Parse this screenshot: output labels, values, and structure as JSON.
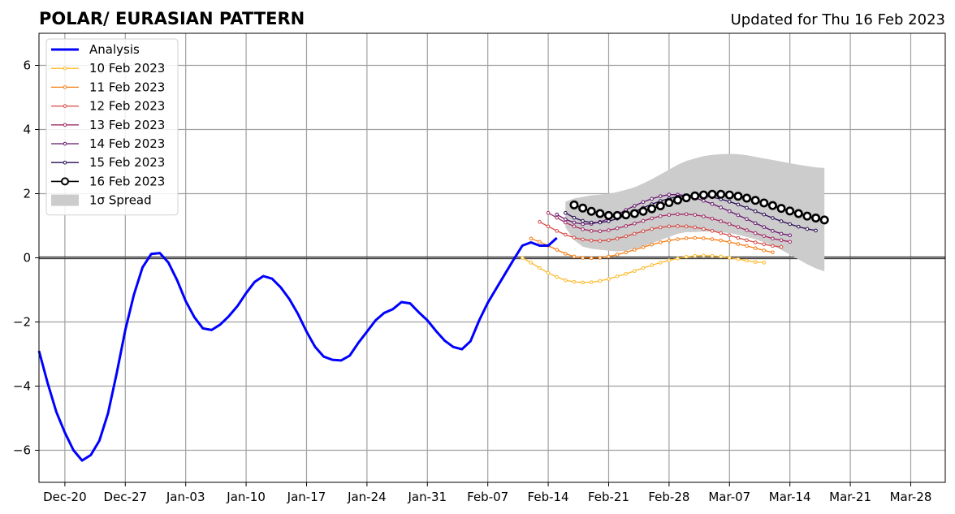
{
  "header": {
    "title": "POLAR/ EURASIAN  PATTERN",
    "updated": "Updated for Thu 16 Feb 2023"
  },
  "chart_data": {
    "type": "line",
    "title": "POLAR/ EURASIAN  PATTERN",
    "subtitle": "Updated for Thu 16 Feb 2023",
    "xlabel": "",
    "ylabel": "",
    "x_unit": "days",
    "xlim": [
      "2022-12-17",
      "2023-04-01"
    ],
    "ylim": [
      -7,
      7
    ],
    "grid": true,
    "legend_position": "top-left",
    "x_ticks": [
      {
        "date": "2022-12-20",
        "label": "Dec-20"
      },
      {
        "date": "2022-12-27",
        "label": "Dec-27"
      },
      {
        "date": "2023-01-03",
        "label": "Jan-03"
      },
      {
        "date": "2023-01-10",
        "label": "Jan-10"
      },
      {
        "date": "2023-01-17",
        "label": "Jan-17"
      },
      {
        "date": "2023-01-24",
        "label": "Jan-24"
      },
      {
        "date": "2023-01-31",
        "label": "Jan-31"
      },
      {
        "date": "2023-02-07",
        "label": "Feb-07"
      },
      {
        "date": "2023-02-14",
        "label": "Feb-14"
      },
      {
        "date": "2023-02-21",
        "label": "Feb-21"
      },
      {
        "date": "2023-02-28",
        "label": "Feb-28"
      },
      {
        "date": "2023-03-07",
        "label": "Mar-07"
      },
      {
        "date": "2023-03-14",
        "label": "Mar-14"
      },
      {
        "date": "2023-03-21",
        "label": "Mar-21"
      },
      {
        "date": "2023-03-28",
        "label": "Mar-28"
      }
    ],
    "y_ticks": [
      {
        "value": 6,
        "label": "6"
      },
      {
        "value": 4,
        "label": "4"
      },
      {
        "value": 2,
        "label": "2"
      },
      {
        "value": 0,
        "label": "0"
      },
      {
        "value": -2,
        "label": "−2"
      },
      {
        "value": -4,
        "label": "−4"
      },
      {
        "value": -6,
        "label": "−6"
      }
    ],
    "analysis": {
      "name": "Analysis",
      "color": "#0000ff",
      "points": [
        [
          "2022-12-17",
          -2.9
        ],
        [
          "2022-12-18",
          -3.9
        ],
        [
          "2022-12-19",
          -4.8
        ],
        [
          "2022-12-20",
          -5.45
        ],
        [
          "2022-12-21",
          -6.0
        ],
        [
          "2022-12-22",
          -6.32
        ],
        [
          "2022-12-23",
          -6.15
        ],
        [
          "2022-12-24",
          -5.7
        ],
        [
          "2022-12-25",
          -4.85
        ],
        [
          "2022-12-26",
          -3.6
        ],
        [
          "2022-12-27",
          -2.25
        ],
        [
          "2022-12-28",
          -1.15
        ],
        [
          "2022-12-29",
          -0.3
        ],
        [
          "2022-12-30",
          0.12
        ],
        [
          "2022-12-31",
          0.15
        ],
        [
          "2023-01-01",
          -0.15
        ],
        [
          "2023-01-02",
          -0.7
        ],
        [
          "2023-01-03",
          -1.35
        ],
        [
          "2023-01-04",
          -1.85
        ],
        [
          "2023-01-05",
          -2.2
        ],
        [
          "2023-01-06",
          -2.25
        ],
        [
          "2023-01-07",
          -2.08
        ],
        [
          "2023-01-08",
          -1.82
        ],
        [
          "2023-01-09",
          -1.5
        ],
        [
          "2023-01-10",
          -1.1
        ],
        [
          "2023-01-11",
          -0.75
        ],
        [
          "2023-01-12",
          -0.57
        ],
        [
          "2023-01-13",
          -0.65
        ],
        [
          "2023-01-14",
          -0.92
        ],
        [
          "2023-01-15",
          -1.28
        ],
        [
          "2023-01-16",
          -1.75
        ],
        [
          "2023-01-17",
          -2.3
        ],
        [
          "2023-01-18",
          -2.78
        ],
        [
          "2023-01-19",
          -3.08
        ],
        [
          "2023-01-20",
          -3.18
        ],
        [
          "2023-01-21",
          -3.2
        ],
        [
          "2023-01-22",
          -3.05
        ],
        [
          "2023-01-23",
          -2.65
        ],
        [
          "2023-01-24",
          -2.3
        ],
        [
          "2023-01-25",
          -1.95
        ],
        [
          "2023-01-26",
          -1.72
        ],
        [
          "2023-01-27",
          -1.6
        ],
        [
          "2023-01-28",
          -1.38
        ],
        [
          "2023-01-29",
          -1.42
        ],
        [
          "2023-01-30",
          -1.7
        ],
        [
          "2023-01-31",
          -1.95
        ],
        [
          "2023-02-01",
          -2.28
        ],
        [
          "2023-02-02",
          -2.58
        ],
        [
          "2023-02-03",
          -2.78
        ],
        [
          "2023-02-04",
          -2.85
        ],
        [
          "2023-02-05",
          -2.6
        ],
        [
          "2023-02-06",
          -1.95
        ],
        [
          "2023-02-07",
          -1.4
        ],
        [
          "2023-02-08",
          -0.95
        ],
        [
          "2023-02-09",
          -0.5
        ],
        [
          "2023-02-10",
          -0.05
        ],
        [
          "2023-02-11",
          0.38
        ],
        [
          "2023-02-12",
          0.48
        ],
        [
          "2023-02-13",
          0.38
        ],
        [
          "2023-02-14",
          0.38
        ],
        [
          "2023-02-15",
          0.62
        ]
      ]
    },
    "spread": {
      "name": "1σ Spread",
      "color": "#cccccc",
      "x": [
        "2023-02-16",
        "2023-02-17",
        "2023-02-18",
        "2023-02-19",
        "2023-02-20",
        "2023-02-21",
        "2023-02-22",
        "2023-02-23",
        "2023-02-24",
        "2023-02-25",
        "2023-02-26",
        "2023-02-27",
        "2023-02-28",
        "2023-03-01",
        "2023-03-02",
        "2023-03-03",
        "2023-03-04",
        "2023-03-05",
        "2023-03-06",
        "2023-03-07",
        "2023-03-08",
        "2023-03-09",
        "2023-03-10",
        "2023-03-11",
        "2023-03-12",
        "2023-03-13",
        "2023-03-14",
        "2023-03-15",
        "2023-03-16",
        "2023-03-17",
        "2023-03-18"
      ],
      "upper": [
        1.75,
        1.85,
        1.9,
        1.95,
        1.97,
        2.0,
        2.05,
        2.12,
        2.2,
        2.32,
        2.45,
        2.6,
        2.75,
        2.9,
        3.02,
        3.1,
        3.17,
        3.21,
        3.23,
        3.24,
        3.23,
        3.2,
        3.15,
        3.1,
        3.05,
        3.0,
        2.95,
        2.9,
        2.86,
        2.82,
        2.8
      ],
      "lower": [
        0.95,
        0.55,
        0.35,
        0.28,
        0.25,
        0.22,
        0.2,
        0.22,
        0.28,
        0.35,
        0.45,
        0.55,
        0.65,
        0.75,
        0.8,
        0.8,
        0.82,
        0.82,
        0.8,
        0.77,
        0.72,
        0.65,
        0.58,
        0.48,
        0.38,
        0.25,
        0.1,
        -0.05,
        -0.2,
        -0.33,
        -0.42
      ]
    },
    "series": [
      {
        "name": "10 Feb 2023",
        "color": "#fcb929",
        "start": "2023-02-11",
        "values": [
          0.0,
          -0.15,
          -0.32,
          -0.47,
          -0.6,
          -0.7,
          -0.75,
          -0.77,
          -0.76,
          -0.72,
          -0.66,
          -0.58,
          -0.5,
          -0.41,
          -0.32,
          -0.23,
          -0.15,
          -0.08,
          -0.02,
          0.03,
          0.06,
          0.07,
          0.06,
          0.04,
          0.0,
          -0.04,
          -0.09,
          -0.13,
          -0.15
        ]
      },
      {
        "name": "11 Feb 2023",
        "color": "#f57d15",
        "start": "2023-02-12",
        "values": [
          0.6,
          0.5,
          0.38,
          0.25,
          0.13,
          0.04,
          0.0,
          -0.01,
          0.0,
          0.04,
          0.1,
          0.17,
          0.25,
          0.33,
          0.41,
          0.48,
          0.54,
          0.58,
          0.61,
          0.62,
          0.61,
          0.58,
          0.54,
          0.49,
          0.43,
          0.37,
          0.3,
          0.23,
          0.17
        ]
      },
      {
        "name": "12 Feb 2023",
        "color": "#d44842",
        "start": "2023-02-13",
        "values": [
          1.12,
          0.98,
          0.84,
          0.72,
          0.63,
          0.57,
          0.54,
          0.53,
          0.55,
          0.6,
          0.67,
          0.75,
          0.83,
          0.9,
          0.95,
          0.98,
          0.99,
          0.98,
          0.95,
          0.9,
          0.84,
          0.77,
          0.7,
          0.62,
          0.55,
          0.48,
          0.42,
          0.37,
          0.34
        ]
      },
      {
        "name": "13 Feb 2023",
        "color": "#9f2a63",
        "start": "2023-02-14",
        "values": [
          1.4,
          1.25,
          1.1,
          0.98,
          0.89,
          0.84,
          0.83,
          0.86,
          0.92,
          0.99,
          1.07,
          1.15,
          1.23,
          1.3,
          1.34,
          1.36,
          1.36,
          1.34,
          1.29,
          1.22,
          1.14,
          1.05,
          0.96,
          0.86,
          0.77,
          0.68,
          0.6,
          0.55,
          0.5
        ]
      },
      {
        "name": "14 Feb 2023",
        "color": "#65156e",
        "start": "2023-02-15",
        "values": [
          1.35,
          1.2,
          1.1,
          1.05,
          1.06,
          1.12,
          1.22,
          1.35,
          1.49,
          1.62,
          1.74,
          1.84,
          1.92,
          1.97,
          1.97,
          1.94,
          1.87,
          1.78,
          1.68,
          1.57,
          1.45,
          1.33,
          1.21,
          1.08,
          0.96,
          0.84,
          0.75,
          0.7
        ]
      },
      {
        "name": "15 Feb 2023",
        "color": "#280b53",
        "start": "2023-02-16",
        "values": [
          1.4,
          1.25,
          1.15,
          1.1,
          1.1,
          1.14,
          1.22,
          1.32,
          1.44,
          1.56,
          1.67,
          1.77,
          1.85,
          1.91,
          1.94,
          1.95,
          1.93,
          1.89,
          1.83,
          1.75,
          1.66,
          1.56,
          1.45,
          1.35,
          1.24,
          1.14,
          1.05,
          0.97,
          0.9,
          0.85
        ]
      },
      {
        "name": "16 Feb 2023",
        "color": "#000000",
        "start": "2023-02-17",
        "values": [
          1.65,
          1.55,
          1.45,
          1.38,
          1.32,
          1.32,
          1.34,
          1.38,
          1.45,
          1.53,
          1.62,
          1.72,
          1.8,
          1.87,
          1.93,
          1.96,
          1.98,
          1.98,
          1.96,
          1.92,
          1.86,
          1.79,
          1.71,
          1.63,
          1.54,
          1.46,
          1.38,
          1.3,
          1.24,
          1.18
        ]
      }
    ]
  }
}
